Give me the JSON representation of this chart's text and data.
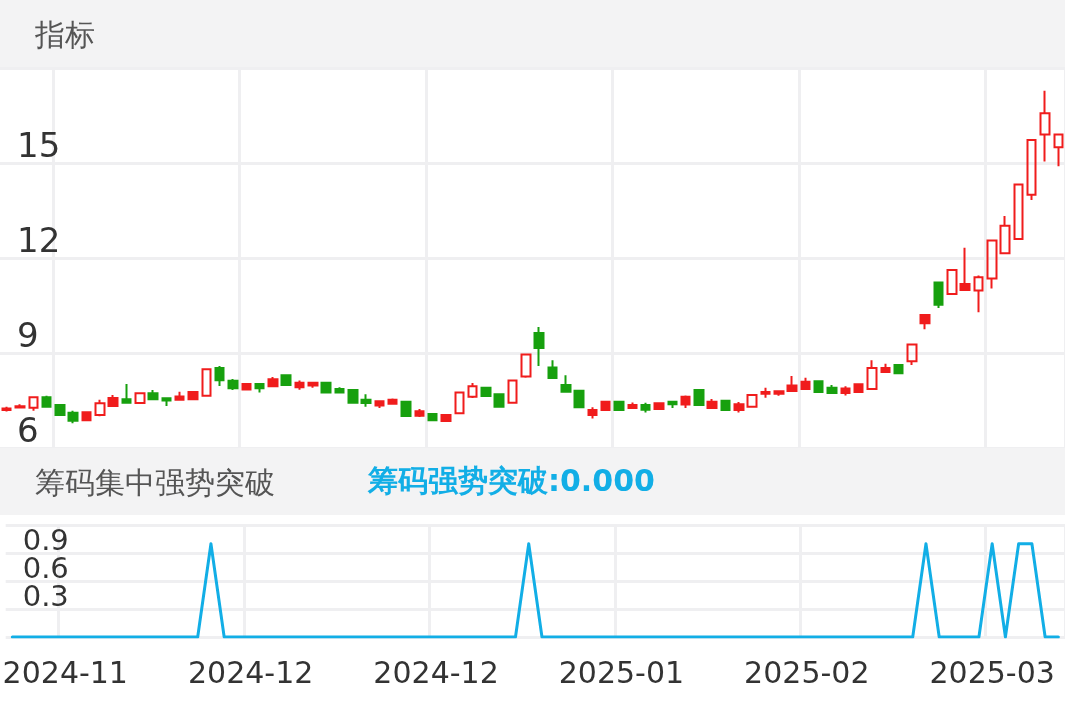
{
  "chart_data": [
    {
      "type": "candlestick",
      "title": "指标",
      "categories": [
        null,
        null,
        null,
        null,
        "2024-11",
        null,
        null,
        null,
        null,
        null,
        null,
        null,
        null,
        null,
        null,
        null,
        null,
        null,
        "2024-12",
        null,
        null,
        null,
        null,
        null,
        null,
        null,
        null,
        null,
        null,
        null,
        null,
        null,
        "2024-12",
        null,
        null,
        null,
        null,
        null,
        null,
        null,
        null,
        null,
        null,
        null,
        null,
        null,
        "2025-01",
        null,
        null,
        null,
        null,
        null,
        null,
        null,
        null,
        null,
        null,
        null,
        null,
        null,
        "2025-02",
        null,
        null,
        null,
        null,
        null,
        null,
        null,
        null,
        null,
        null,
        null,
        null,
        null,
        "2025-03",
        null,
        null,
        null,
        null,
        null
      ],
      "ohlc": [
        [
          7.2,
          7.3,
          7.15,
          7.25
        ],
        [
          7.28,
          7.38,
          7.25,
          7.32
        ],
        [
          7.27,
          7.62,
          7.18,
          7.6
        ],
        [
          7.6,
          7.65,
          7.28,
          7.3
        ],
        [
          7.36,
          7.38,
          7.02,
          7.04
        ],
        [
          7.11,
          7.18,
          6.78,
          6.86
        ],
        [
          6.88,
          7.15,
          6.86,
          7.13
        ],
        [
          7.04,
          7.52,
          7.0,
          7.41
        ],
        [
          7.33,
          7.67,
          7.3,
          7.58
        ],
        [
          7.54,
          8.02,
          7.41,
          7.43
        ],
        [
          7.42,
          7.75,
          7.4,
          7.73
        ],
        [
          7.73,
          7.83,
          7.52,
          7.54
        ],
        [
          7.57,
          7.58,
          7.33,
          7.5
        ],
        [
          7.52,
          7.78,
          7.5,
          7.63
        ],
        [
          7.54,
          7.8,
          7.52,
          7.77
        ],
        [
          7.65,
          8.51,
          7.62,
          8.49
        ],
        [
          8.53,
          8.59,
          7.96,
          8.14
        ],
        [
          8.12,
          8.18,
          7.83,
          7.89
        ],
        [
          7.85,
          8.04,
          7.83,
          8.02
        ],
        [
          8.02,
          8.04,
          7.75,
          7.89
        ],
        [
          7.95,
          8.24,
          7.93,
          8.17
        ],
        [
          8.3,
          8.33,
          7.97,
          7.99
        ],
        [
          7.92,
          8.13,
          7.84,
          8.06
        ],
        [
          7.97,
          8.08,
          7.9,
          8.06
        ],
        [
          8.06,
          8.08,
          7.73,
          7.75
        ],
        [
          7.86,
          7.92,
          7.73,
          7.75
        ],
        [
          7.83,
          7.85,
          7.41,
          7.43
        ],
        [
          7.52,
          7.7,
          7.3,
          7.42
        ],
        [
          7.34,
          7.5,
          7.26,
          7.48
        ],
        [
          7.4,
          7.56,
          7.38,
          7.52
        ],
        [
          7.46,
          7.48,
          6.99,
          7.01
        ],
        [
          7.02,
          7.23,
          6.98,
          7.16
        ],
        [
          7.07,
          7.09,
          6.85,
          6.88
        ],
        [
          6.85,
          7.06,
          6.83,
          7.04
        ],
        [
          7.1,
          7.78,
          7.08,
          7.75
        ],
        [
          7.62,
          8.05,
          7.58,
          7.95
        ],
        [
          7.9,
          7.92,
          7.62,
          7.64
        ],
        [
          7.7,
          7.72,
          7.28,
          7.3
        ],
        [
          7.43,
          8.15,
          7.4,
          8.13
        ],
        [
          8.26,
          8.97,
          8.22,
          8.95
        ],
        [
          9.63,
          9.82,
          8.59,
          9.16
        ],
        [
          8.54,
          8.77,
          8.19,
          8.21
        ],
        [
          7.99,
          8.3,
          7.76,
          7.78
        ],
        [
          7.81,
          7.83,
          7.27,
          7.29
        ],
        [
          7.04,
          7.29,
          6.93,
          7.2
        ],
        [
          7.2,
          7.49,
          7.17,
          7.46
        ],
        [
          7.46,
          7.49,
          7.18,
          7.2
        ],
        [
          7.26,
          7.44,
          7.24,
          7.36
        ],
        [
          7.36,
          7.43,
          7.12,
          7.21
        ],
        [
          7.23,
          7.43,
          7.21,
          7.41
        ],
        [
          7.46,
          7.48,
          7.26,
          7.38
        ],
        [
          7.37,
          7.66,
          7.26,
          7.62
        ],
        [
          7.83,
          7.86,
          7.34,
          7.36
        ],
        [
          7.26,
          7.55,
          7.24,
          7.46
        ],
        [
          7.49,
          7.51,
          7.18,
          7.2
        ],
        [
          7.2,
          7.45,
          7.12,
          7.38
        ],
        [
          7.3,
          7.7,
          7.28,
          7.67
        ],
        [
          7.71,
          7.9,
          7.59,
          7.77
        ],
        [
          7.71,
          7.81,
          7.65,
          7.79
        ],
        [
          7.8,
          8.27,
          7.78,
          7.97
        ],
        [
          7.86,
          8.22,
          7.84,
          8.09
        ],
        [
          8.11,
          8.13,
          7.75,
          7.77
        ],
        [
          7.9,
          7.99,
          7.72,
          7.74
        ],
        [
          7.74,
          7.95,
          7.66,
          7.88
        ],
        [
          7.77,
          8.03,
          7.75,
          8.01
        ],
        [
          7.86,
          8.77,
          7.84,
          8.53
        ],
        [
          8.4,
          8.66,
          8.37,
          8.53
        ],
        [
          8.62,
          8.64,
          8.34,
          8.36
        ],
        [
          8.74,
          9.3,
          8.62,
          9.27
        ],
        [
          9.94,
          10.23,
          9.75,
          10.2
        ],
        [
          11.23,
          11.25,
          10.42,
          10.52
        ],
        [
          10.86,
          11.65,
          10.83,
          11.62
        ],
        [
          10.99,
          12.32,
          10.96,
          11.18
        ],
        [
          10.97,
          11.45,
          10.29,
          11.39
        ],
        [
          11.35,
          12.58,
          11.04,
          12.55
        ],
        [
          12.15,
          13.33,
          12.12,
          13.02
        ],
        [
          12.6,
          14.35,
          12.57,
          14.32
        ],
        [
          14.0,
          15.76,
          13.83,
          15.73
        ],
        [
          15.9,
          17.28,
          15.05,
          16.57
        ],
        [
          15.5,
          15.9,
          14.9,
          15.9
        ]
      ],
      "colors": [
        "#f01c1c",
        "#f01c1c",
        "#f01c1c",
        "#17a00e",
        "#17a00e",
        "#17a00e",
        "#f01c1c",
        "#f01c1c",
        "#f01c1c",
        "#17a00e",
        "#f01c1c",
        "#17a00e",
        "#17a00e",
        "#f01c1c",
        "#f01c1c",
        "#f01c1c",
        "#17a00e",
        "#17a00e",
        "#f01c1c",
        "#17a00e",
        "#f01c1c",
        "#17a00e",
        "#f01c1c",
        "#f01c1c",
        "#17a00e",
        "#17a00e",
        "#17a00e",
        "#17a00e",
        "#f01c1c",
        "#f01c1c",
        "#17a00e",
        "#f01c1c",
        "#17a00e",
        "#f01c1c",
        "#f01c1c",
        "#f01c1c",
        "#17a00e",
        "#17a00e",
        "#f01c1c",
        "#f01c1c",
        "#17a00e",
        "#17a00e",
        "#17a00e",
        "#17a00e",
        "#f01c1c",
        "#f01c1c",
        "#17a00e",
        "#f01c1c",
        "#17a00e",
        "#f01c1c",
        "#17a00e",
        "#f01c1c",
        "#17a00e",
        "#f01c1c",
        "#17a00e",
        "#f01c1c",
        "#f01c1c",
        "#f01c1c",
        "#f01c1c",
        "#f01c1c",
        "#f01c1c",
        "#17a00e",
        "#17a00e",
        "#f01c1c",
        "#f01c1c",
        "#f01c1c",
        "#f01c1c",
        "#17a00e",
        "#f01c1c",
        "#f01c1c",
        "#17a00e",
        "#f01c1c",
        "#f01c1c",
        "#f01c1c",
        "#f01c1c",
        "#f01c1c",
        "#f01c1c",
        "#f01c1c",
        "#f01c1c",
        "#f01c1c"
      ],
      "ylim": [
        6,
        18
      ],
      "yticks": [
        6,
        9,
        12,
        15
      ],
      "grid": true,
      "tick_labels": "y"
    },
    {
      "type": "line",
      "title": "筹码集中强势突破",
      "categories": [
        null,
        null,
        null,
        null,
        "2024-11",
        null,
        null,
        null,
        null,
        null,
        null,
        null,
        null,
        null,
        null,
        null,
        null,
        null,
        "2024-12",
        null,
        null,
        null,
        null,
        null,
        null,
        null,
        null,
        null,
        null,
        null,
        null,
        null,
        "2024-12",
        null,
        null,
        null,
        null,
        null,
        null,
        null,
        null,
        null,
        null,
        null,
        null,
        null,
        "2025-01",
        null,
        null,
        null,
        null,
        null,
        null,
        null,
        null,
        null,
        null,
        null,
        null,
        null,
        "2025-02",
        null,
        null,
        null,
        null,
        null,
        null,
        null,
        null,
        null,
        null,
        null,
        null,
        null,
        "2025-03",
        null,
        null,
        null,
        null,
        null
      ],
      "series": [
        {
          "name": "筹码强势突破:0.000",
          "color": "#12aee6",
          "values": [
            0,
            0,
            0,
            0,
            0,
            0,
            0,
            0,
            0,
            0,
            0,
            0,
            0,
            0,
            0,
            1,
            0,
            0,
            0,
            0,
            0,
            0,
            0,
            0,
            0,
            0,
            0,
            0,
            0,
            0,
            0,
            0,
            0,
            0,
            0,
            0,
            0,
            0,
            0,
            1,
            0,
            0,
            0,
            0,
            0,
            0,
            0,
            0,
            0,
            0,
            0,
            0,
            0,
            0,
            0,
            0,
            0,
            0,
            0,
            0,
            0,
            0,
            0,
            0,
            0,
            0,
            0,
            0,
            0,
            1,
            0,
            0,
            0,
            0,
            1,
            0,
            1,
            1,
            0,
            0
          ]
        }
      ],
      "ylim": [
        0,
        1.2
      ],
      "yticks": [
        {
          "value": 0,
          "label": null
        },
        0.3,
        0.6,
        0.9,
        {
          "value": 1.2,
          "label": null
        }
      ],
      "grid": true,
      "legend": "top left",
      "marker": "none"
    }
  ]
}
